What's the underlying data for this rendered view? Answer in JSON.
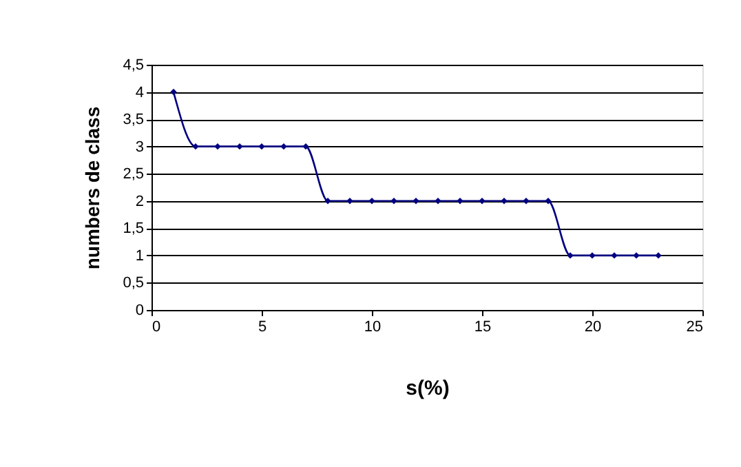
{
  "chart_data": {
    "type": "line",
    "xlabel": "s(%)",
    "ylabel": "numbers de class",
    "x": [
      1,
      2,
      3,
      4,
      5,
      6,
      7,
      8,
      9,
      10,
      11,
      12,
      13,
      14,
      15,
      16,
      17,
      18,
      19,
      20,
      21,
      22,
      23
    ],
    "series": [
      {
        "color": "#000080",
        "values": [
          4,
          3,
          3,
          3,
          3,
          3,
          3,
          2,
          2,
          2,
          2,
          2,
          2,
          2,
          2,
          2,
          2,
          2,
          1,
          1,
          1,
          1,
          1
        ]
      }
    ],
    "xlim": [
      0,
      25
    ],
    "xticks": [
      0,
      5,
      10,
      15,
      20,
      25
    ],
    "ylim": [
      0,
      4.5
    ],
    "yticks": [
      0,
      {
        "value": 0.5,
        "label": "0,5"
      },
      1,
      {
        "value": 1.5,
        "label": "1,5"
      },
      2,
      {
        "value": 2.5,
        "label": "2,5"
      },
      3,
      {
        "value": 3.5,
        "label": "3,5"
      },
      4,
      {
        "value": 4.5,
        "label": "4,5"
      }
    ],
    "grid": "y",
    "marker": "diamond",
    "line_style": "solid"
  }
}
